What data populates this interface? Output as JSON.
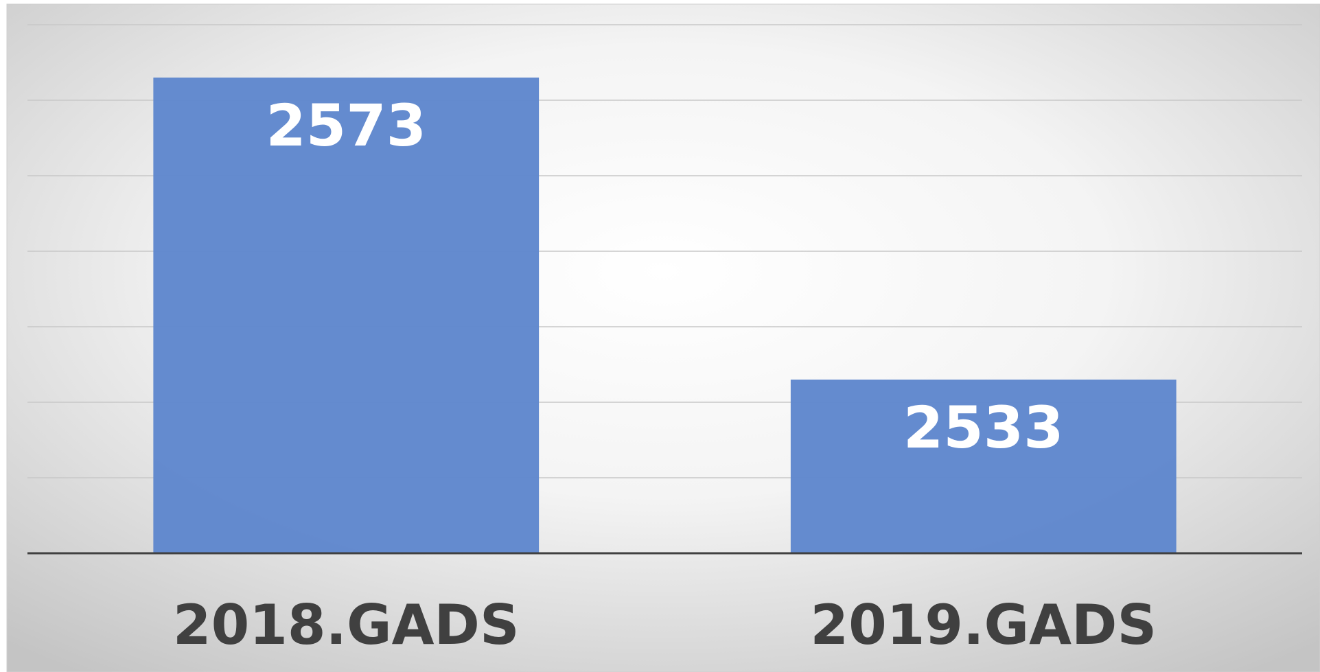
{
  "chart_data": {
    "type": "bar",
    "categories": [
      "2018.GADS",
      "2019.GADS"
    ],
    "values": [
      2573,
      2533
    ],
    "color": "#5f87cd",
    "ylim": [
      2510,
      2580
    ],
    "yticks": [
      2510,
      2520,
      2530,
      2540,
      2550,
      2560,
      2570,
      2580
    ],
    "grid": true
  }
}
